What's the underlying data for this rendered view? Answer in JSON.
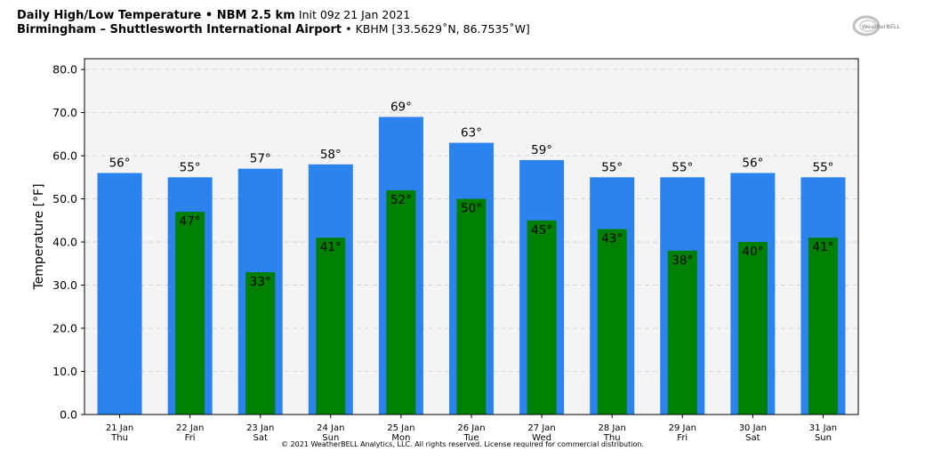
{
  "header": {
    "title_bold": "Daily High/Low Temperature • NBM 2.5 km",
    "init": "Init 09z 21 Jan 2021",
    "station_bold": "Birmingham – Shuttlesworth International Airport",
    "station_detail": "• KBHM [33.5629˚N, 86.7535˚W]"
  },
  "logo_text": "WeatherBELL",
  "footer": "© 2021 WeatherBELL Analytics, LLC. All rights reserved. License required for commercial distribution.",
  "colors": {
    "high": "#2b83f0",
    "low": "#008000",
    "plot_bg": "#f4f4f4"
  },
  "chart_data": {
    "type": "bar",
    "ylabel": "Temperature [°F]",
    "ylim": [
      0,
      82.5
    ],
    "yticks": [
      "0.0",
      "10.0",
      "20.0",
      "30.0",
      "40.0",
      "50.0",
      "60.0",
      "70.0",
      "80.0"
    ],
    "grid": true,
    "categories": [
      "21 Jan",
      "22 Jan",
      "23 Jan",
      "24 Jan",
      "25 Jan",
      "26 Jan",
      "27 Jan",
      "28 Jan",
      "29 Jan",
      "30 Jan",
      "31 Jan"
    ],
    "weekdays": [
      "Thu",
      "Fri",
      "Sat",
      "Sun",
      "Mon",
      "Tue",
      "Wed",
      "Thu",
      "Fri",
      "Sat",
      "Sun"
    ],
    "series": [
      {
        "key": "high",
        "values": [
          56,
          55,
          57,
          58,
          69,
          63,
          59,
          55,
          55,
          56,
          55
        ],
        "labels": [
          "56°",
          "55°",
          "57°",
          "58°",
          "69°",
          "63°",
          "59°",
          "55°",
          "55°",
          "56°",
          "55°"
        ]
      },
      {
        "key": "low",
        "values": [
          null,
          47,
          33,
          41,
          52,
          50,
          45,
          43,
          38,
          40,
          41
        ],
        "labels": [
          null,
          "47°",
          "33°",
          "41°",
          "52°",
          "50°",
          "45°",
          "43°",
          "38°",
          "40°",
          "41°"
        ]
      }
    ]
  }
}
